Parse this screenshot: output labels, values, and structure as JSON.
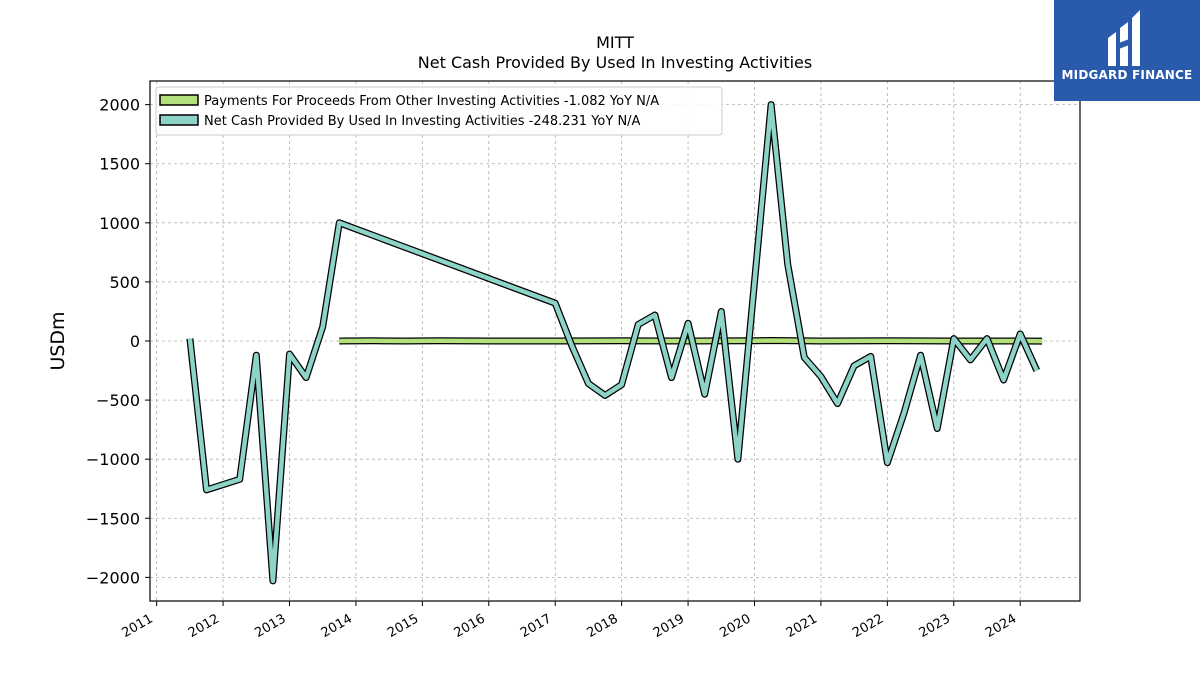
{
  "brand": {
    "name": "MIDGARD FINANCE",
    "bg_color": "#2a5aab",
    "icon": "midgard-logo-icon"
  },
  "chart_data": {
    "type": "line",
    "title": "MITT",
    "subtitle": "Net Cash Provided By Used In Investing Activities",
    "ylabel": "USDm",
    "xlabel": "",
    "ylim": [
      -2200,
      2200
    ],
    "yticks": [
      2000,
      1500,
      1000,
      500,
      0,
      -500,
      -1000,
      -1500,
      -2000
    ],
    "ytick_labels": [
      "2000",
      "1500",
      "1000",
      "500",
      "0",
      "−500",
      "−1000",
      "−1500",
      "−2000"
    ],
    "xlim": [
      2010.9,
      2024.9
    ],
    "xticks": [
      2011,
      2012,
      2013,
      2014,
      2015,
      2016,
      2017,
      2018,
      2019,
      2020,
      2021,
      2022,
      2023,
      2024
    ],
    "xtick_labels": [
      "2011",
      "2012",
      "2013",
      "2014",
      "2015",
      "2016",
      "2017",
      "2018",
      "2019",
      "2020",
      "2021",
      "2022",
      "2023",
      "2024"
    ],
    "grid": true,
    "legend_position": "top-left",
    "series": [
      {
        "name": "Payments For Proceeds From Other Investing Activities",
        "legend_label": "Payments For Proceeds From Other Investing Activities  -1.082 YoY N/A",
        "color": "#b3e07a",
        "x": [
          2013.75,
          2014.25,
          2014.75,
          2015.25,
          2016.0,
          2017.0,
          2018.0,
          2019.0,
          2020.0,
          2020.25,
          2021.0,
          2022.0,
          2023.0,
          2024.0,
          2024.33
        ],
        "values": [
          0,
          2,
          0,
          2,
          0,
          0,
          2,
          0,
          2,
          4,
          0,
          2,
          0,
          0,
          -1
        ]
      },
      {
        "name": "Net Cash Provided By Used In Investing Activities",
        "legend_label": "Net Cash Provided By Used In Investing Activities  -248.231 YoY N/A",
        "color": "#8dd3c7",
        "x": [
          2011.5,
          2011.75,
          2012.25,
          2012.5,
          2012.75,
          2013.0,
          2013.25,
          2013.5,
          2013.75,
          2017.0,
          2017.25,
          2017.5,
          2017.75,
          2018.0,
          2018.25,
          2018.5,
          2018.75,
          2019.0,
          2019.25,
          2019.5,
          2019.75,
          2020.25,
          2020.5,
          2020.75,
          2021.0,
          2021.25,
          2021.5,
          2021.75,
          2022.0,
          2022.25,
          2022.5,
          2022.75,
          2023.0,
          2023.25,
          2023.5,
          2023.75,
          2024.0,
          2024.25
        ],
        "values": [
          20,
          -1260,
          -1170,
          -120,
          -2030,
          -110,
          -310,
          120,
          1000,
          320,
          -40,
          -360,
          -460,
          -370,
          140,
          220,
          -310,
          150,
          -450,
          250,
          -1000,
          2000,
          650,
          -140,
          -300,
          -530,
          -210,
          -130,
          -1030,
          -610,
          -120,
          -740,
          20,
          -160,
          20,
          -330,
          60,
          -250
        ]
      }
    ]
  }
}
